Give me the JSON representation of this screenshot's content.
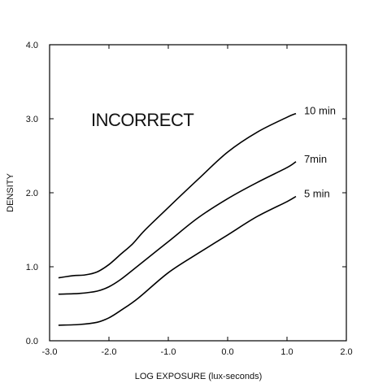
{
  "chart_data": {
    "type": "line",
    "title": "",
    "annotation": "INCORRECT",
    "xlabel": "LOG EXPOSURE (lux-seconds)",
    "ylabel": "DENSITY",
    "xlim": [
      -3.0,
      2.0
    ],
    "ylim": [
      0.0,
      4.0
    ],
    "xticks": [
      -3.0,
      -2.0,
      -1.0,
      0.0,
      1.0,
      2.0
    ],
    "xtick_labels": [
      "-3.0",
      "-2.0",
      "-1.0",
      "0.0",
      "1.0",
      "2.0"
    ],
    "yticks": [
      0.0,
      1.0,
      2.0,
      3.0,
      4.0
    ],
    "ytick_labels": [
      "0.0",
      "1.0",
      "2.0",
      "3.0",
      "4.0"
    ],
    "grid": false,
    "series": [
      {
        "name": "10 min",
        "x": [
          -2.85,
          -2.6,
          -2.4,
          -2.2,
          -2.0,
          -1.8,
          -1.6,
          -1.4,
          -1.0,
          -0.5,
          0.0,
          0.5,
          1.0,
          1.15
        ],
        "y": [
          0.85,
          0.88,
          0.89,
          0.93,
          1.03,
          1.17,
          1.31,
          1.49,
          1.8,
          2.18,
          2.55,
          2.82,
          3.02,
          3.07
        ]
      },
      {
        "name": "7min",
        "x": [
          -2.85,
          -2.5,
          -2.2,
          -2.0,
          -1.8,
          -1.5,
          -1.0,
          -0.5,
          0.0,
          0.5,
          1.0,
          1.15
        ],
        "y": [
          0.63,
          0.64,
          0.67,
          0.73,
          0.83,
          1.02,
          1.34,
          1.66,
          1.92,
          2.14,
          2.34,
          2.42
        ]
      },
      {
        "name": "5 min",
        "x": [
          -2.85,
          -2.5,
          -2.2,
          -2.0,
          -1.8,
          -1.5,
          -1.0,
          -0.5,
          0.0,
          0.5,
          1.0,
          1.15
        ],
        "y": [
          0.21,
          0.22,
          0.25,
          0.31,
          0.41,
          0.58,
          0.92,
          1.18,
          1.43,
          1.68,
          1.88,
          1.95
        ]
      }
    ]
  }
}
